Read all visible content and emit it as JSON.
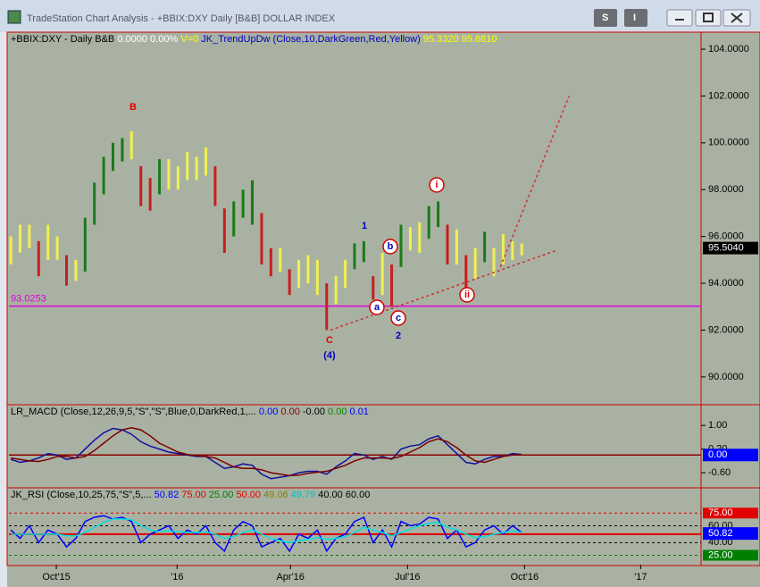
{
  "window": {
    "title": "TradeStation Chart Analysis - +BBIX:DXY Daily [B&B] DOLLAR INDEX",
    "buttons": [
      "S",
      "I"
    ]
  },
  "chart_data": [
    {
      "type": "hilo",
      "header": [
        {
          "text": "+BBIX:DXY - Daily  B&B",
          "color": "#000000"
        },
        {
          "text": "0.0000",
          "color": "#ffffff"
        },
        {
          "text": "0.00%",
          "color": "#ffffff"
        },
        {
          "text": "V=0",
          "color": "#ffff00"
        },
        {
          "text": "JK_TrendUpDw (Close,10,DarkGreen,Red,Yellow)",
          "color": "#0000c0"
        },
        {
          "text": "95.3320",
          "color": "#ffff00"
        },
        {
          "text": "95.6810",
          "color": "#ffff00"
        }
      ],
      "high": [
        96.0,
        96.5,
        96.5,
        95.8,
        96.5,
        96.0,
        95.2,
        95.0,
        96.8,
        98.3,
        99.4,
        100.0,
        100.2,
        100.5,
        99.0,
        98.5,
        99.3,
        99.3,
        99.0,
        99.6,
        99.4,
        99.8,
        99.0,
        97.2,
        97.5,
        98.0,
        98.4,
        97.0,
        95.5,
        95.5,
        94.6,
        95.0,
        95.2,
        95.0,
        94.0,
        94.3,
        95.0,
        95.7,
        95.8,
        94.3,
        95.3,
        94.8,
        96.5,
        96.4,
        96.6,
        97.3,
        97.5,
        96.5,
        96.3,
        95.2,
        95.5,
        96.2,
        95.5,
        96.1,
        95.8,
        95.7
      ],
      "low": [
        94.8,
        95.3,
        95.5,
        94.3,
        95.0,
        95.0,
        93.9,
        94.1,
        94.5,
        96.5,
        97.8,
        98.8,
        99.2,
        99.3,
        97.3,
        97.1,
        97.8,
        98.0,
        98.0,
        98.4,
        98.4,
        98.6,
        97.3,
        95.3,
        96.0,
        96.8,
        96.5,
        94.8,
        94.3,
        94.5,
        93.5,
        93.8,
        94.0,
        93.5,
        92.0,
        93.1,
        93.8,
        94.6,
        94.9,
        93.3,
        93.5,
        93.0,
        94.7,
        95.4,
        95.3,
        95.9,
        96.4,
        94.8,
        94.8,
        93.8,
        94.2,
        94.9,
        94.3,
        94.8,
        95.0,
        95.2
      ],
      "colors": [
        "#f0f050",
        "#f0f050",
        "#f0f050",
        "#c81e1e",
        "#f0f050",
        "#f0f050",
        "#c81e1e",
        "#f0f050",
        "#1a7a1a",
        "#1a7a1a",
        "#1a7a1a",
        "#1a7a1a",
        "#1a7a1a",
        "#f0f050",
        "#c81e1e",
        "#c81e1e",
        "#1a7a1a",
        "#f0f050",
        "#f0f050",
        "#f0f050",
        "#f0f050",
        "#f0f050",
        "#c81e1e",
        "#c81e1e",
        "#1a7a1a",
        "#1a7a1a",
        "#1a7a1a",
        "#c81e1e",
        "#c81e1e",
        "#f0f050",
        "#c81e1e",
        "#f0f050",
        "#f0f050",
        "#f0f050",
        "#c81e1e",
        "#f0f050",
        "#f0f050",
        "#1a7a1a",
        "#1a7a1a",
        "#c81e1e",
        "#f0f050",
        "#c81e1e",
        "#1a7a1a",
        "#f0f050",
        "#f0f050",
        "#1a7a1a",
        "#1a7a1a",
        "#c81e1e",
        "#f0f050",
        "#c81e1e",
        "#f0f050",
        "#1a7a1a",
        "#f0f050",
        "#f0f050",
        "#f0f050",
        "#f0f050"
      ],
      "xlim": [
        -0.2,
        74.3
      ],
      "ylim": [
        88.85,
        104.65
      ],
      "yticks": [
        {
          "value": 104,
          "label": "104.0000"
        },
        {
          "value": 102,
          "label": "102.0000"
        },
        {
          "value": 100,
          "label": "100.0000"
        },
        {
          "value": 98,
          "label": "98.0000"
        },
        {
          "value": 96,
          "label": "96.0000"
        },
        {
          "value": 94,
          "label": "94.0000"
        },
        {
          "value": 92,
          "label": "92.0000"
        },
        {
          "value": 90,
          "label": "90.0000"
        }
      ],
      "hlines": [
        {
          "value": 93.0253,
          "label": "93.0253",
          "color": "#e000e0"
        }
      ],
      "last_value": {
        "value": 95.504,
        "label": "95.5040",
        "color": "#000000"
      },
      "trendlines": [
        {
          "color": "#c83232",
          "points": [
            [
              34.4,
              92.0
            ],
            [
              58.7,
              95.4
            ]
          ]
        },
        {
          "color": "#c83232",
          "points": [
            [
              52.7,
              94.7
            ],
            [
              60.1,
              102.0
            ]
          ]
        }
      ],
      "annotations": [
        {
          "text": "B",
          "color": "#e00000"
        },
        {
          "text": "1",
          "color": "#0000c0"
        },
        {
          "text": "C",
          "color": "#e00000"
        },
        {
          "text": "(4)",
          "color": "#0000c0"
        },
        {
          "text": "2",
          "color": "#0000c0"
        },
        {
          "text": "a",
          "color": "#0000c0"
        },
        {
          "text": "b",
          "color": "#0000c0"
        },
        {
          "text": "c",
          "color": "#0000c0"
        },
        {
          "text": "i",
          "color": "#e00000"
        },
        {
          "text": "ii",
          "color": "#e00000"
        }
      ]
    },
    {
      "type": "line",
      "header": [
        {
          "text": "LR_MACD (Close,12,26,9,5,\"S\",\"S\",Blue,0,DarkRed,1,...",
          "color": "#000000"
        },
        {
          "text": "0.00",
          "color": "#0000ff"
        },
        {
          "text": "0.00",
          "color": "#8b0000"
        },
        {
          "text": "-0.00",
          "color": "#000000"
        },
        {
          "text": "0.00",
          "color": "#008000"
        },
        {
          "text": "0.01",
          "color": "#0000ff"
        }
      ],
      "series": [
        {
          "color": "#1010a0",
          "values": [
            -0.15,
            -0.25,
            -0.2,
            -0.1,
            0.05,
            0.0,
            -0.15,
            -0.1,
            0.2,
            0.5,
            0.75,
            0.9,
            0.85,
            0.7,
            0.45,
            0.3,
            0.2,
            0.1,
            0.05,
            0.0,
            -0.05,
            -0.05,
            -0.25,
            -0.45,
            -0.4,
            -0.3,
            -0.35,
            -0.65,
            -0.8,
            -0.75,
            -0.7,
            -0.6,
            -0.55,
            -0.55,
            -0.65,
            -0.4,
            -0.2,
            0.05,
            0.0,
            -0.15,
            -0.05,
            -0.15,
            0.2,
            0.3,
            0.35,
            0.55,
            0.65,
            0.35,
            0.05,
            -0.25,
            -0.3,
            -0.15,
            -0.05,
            -0.05,
            0.05,
            0.02
          ]
        },
        {
          "color": "#7a0000",
          "values": [
            -0.1,
            -0.15,
            -0.2,
            -0.22,
            -0.15,
            -0.05,
            -0.05,
            -0.1,
            -0.05,
            0.15,
            0.4,
            0.65,
            0.85,
            0.92,
            0.85,
            0.65,
            0.4,
            0.25,
            0.1,
            0.02,
            -0.02,
            -0.05,
            -0.1,
            -0.25,
            -0.4,
            -0.45,
            -0.45,
            -0.5,
            -0.6,
            -0.65,
            -0.7,
            -0.68,
            -0.62,
            -0.58,
            -0.55,
            -0.45,
            -0.35,
            -0.2,
            -0.1,
            -0.1,
            -0.1,
            -0.12,
            -0.05,
            0.1,
            0.25,
            0.45,
            0.55,
            0.45,
            0.25,
            0.0,
            -0.2,
            -0.25,
            -0.15,
            -0.05,
            0.0,
            0.02
          ]
        }
      ],
      "xlim": [
        -0.2,
        74.3
      ],
      "ylim": [
        -1.08,
        1.64
      ],
      "yticks": [
        {
          "value": 1,
          "label": "1.00"
        },
        {
          "value": 0.2,
          "label": "0.20"
        },
        {
          "value": -0.6,
          "label": "-0.60"
        }
      ],
      "hlines": [
        {
          "value": 0,
          "color": "#8b0000"
        }
      ],
      "last_value": {
        "value": 0,
        "label": "0.00",
        "color": "#0000ff"
      }
    },
    {
      "type": "line",
      "header": [
        {
          "text": "JK_RSI (Close,10,25,75,\"S\",5,...",
          "color": "#000000"
        },
        {
          "text": "50.82",
          "color": "#0000ff"
        },
        {
          "text": "75.00",
          "color": "#e00000"
        },
        {
          "text": "25.00",
          "color": "#008000"
        },
        {
          "text": "50.00",
          "color": "#e00000"
        },
        {
          "text": "49.06",
          "color": "#808000"
        },
        {
          "text": "49.79",
          "color": "#00c0c0"
        },
        {
          "text": "40.00",
          "color": "#000000"
        },
        {
          "text": "60.00",
          "color": "#000000"
        }
      ],
      "series": [
        {
          "color": "#0000ff",
          "values": [
            55,
            45,
            60,
            40,
            55,
            50,
            35,
            45,
            65,
            70,
            72,
            68,
            70,
            65,
            40,
            50,
            55,
            60,
            45,
            55,
            50,
            60,
            40,
            30,
            55,
            65,
            60,
            35,
            40,
            45,
            30,
            50,
            45,
            55,
            30,
            45,
            50,
            65,
            70,
            40,
            55,
            35,
            65,
            60,
            62,
            70,
            68,
            45,
            55,
            35,
            40,
            55,
            60,
            50,
            60,
            52
          ]
        },
        {
          "color": "#00e0e0",
          "values": [
            50,
            50,
            50,
            50,
            50,
            50,
            48,
            48,
            52,
            58,
            64,
            68,
            68,
            67,
            60,
            55,
            53,
            54,
            53,
            52,
            52,
            53,
            50,
            45,
            47,
            52,
            55,
            50,
            45,
            42,
            40,
            42,
            44,
            46,
            44,
            45,
            47,
            52,
            58,
            55,
            52,
            48,
            52,
            56,
            60,
            63,
            64,
            58,
            55,
            50,
            46,
            47,
            50,
            52,
            54,
            52
          ]
        }
      ],
      "xlim": [
        -0.2,
        74.3
      ],
      "ylim": [
        13.9,
        102.8
      ],
      "levels": [
        {
          "value": 75,
          "label": "75.00",
          "color": "#e00000",
          "dash": true,
          "box": true
        },
        {
          "value": 60,
          "label": "60.00",
          "color": "#000000",
          "dash": true,
          "box": false
        },
        {
          "value": 50,
          "color": "#e00000",
          "dash": false,
          "box": false
        },
        {
          "value": 40,
          "label": "40.00",
          "color": "#000000",
          "dash": true,
          "box": false
        },
        {
          "value": 25,
          "label": "25.00",
          "color": "#008000",
          "dash": true,
          "box": true
        }
      ],
      "last_value": {
        "value": 50.82,
        "label": "50.82",
        "color": "#0000ff"
      },
      "xticks": [
        {
          "value": 4.9,
          "label": "Oct'15"
        },
        {
          "value": 17.9,
          "label": "'16"
        },
        {
          "value": 30.1,
          "label": "Apr'16"
        },
        {
          "value": 42.7,
          "label": "Jul'16"
        },
        {
          "value": 55.3,
          "label": "Oct'16"
        },
        {
          "value": 67.8,
          "label": "'17"
        }
      ]
    }
  ]
}
